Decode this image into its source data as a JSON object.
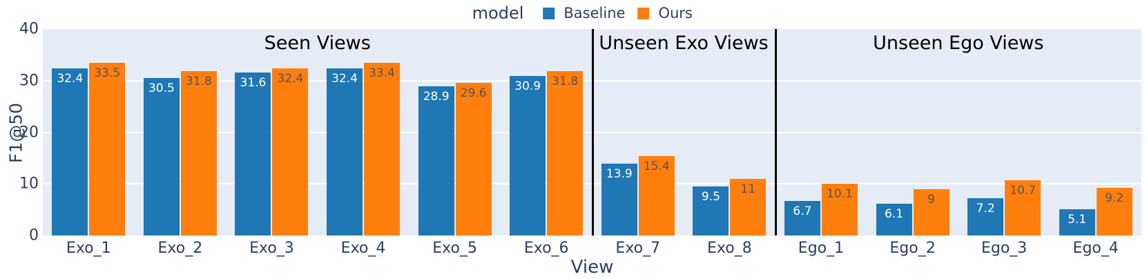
{
  "chart_data": {
    "type": "bar",
    "title": "",
    "xlabel": "View",
    "ylabel": "F1@50",
    "ylim": [
      0,
      40
    ],
    "yticks": [
      0,
      10,
      20,
      30,
      40
    ],
    "grid": true,
    "legend": {
      "title": "model",
      "position": "top-center"
    },
    "categories": [
      "Exo_1",
      "Exo_2",
      "Exo_3",
      "Exo_4",
      "Exo_5",
      "Exo_6",
      "Exo_7",
      "Exo_8",
      "Ego_1",
      "Ego_2",
      "Ego_3",
      "Ego_4"
    ],
    "series": [
      {
        "name": "Baseline",
        "color": "#1f77b4",
        "label_color": "#ffffff",
        "values": [
          32.4,
          30.5,
          31.6,
          32.4,
          28.9,
          30.9,
          13.9,
          9.5,
          6.7,
          6.1,
          7.2,
          5.1
        ]
      },
      {
        "name": "Ours",
        "color": "#ff7f0e",
        "label_color": "#545454",
        "values": [
          33.5,
          31.8,
          32.4,
          33.4,
          29.6,
          31.8,
          15.4,
          11,
          10.1,
          9,
          10.7,
          9.2
        ]
      }
    ],
    "sections": [
      {
        "label": "Seen Views",
        "start": 0,
        "end": 6
      },
      {
        "label": "Unseen Exo Views",
        "start": 6,
        "end": 8
      },
      {
        "label": "Unseen Ego Views",
        "start": 8,
        "end": 12
      }
    ],
    "colors": {
      "plot_bg": "#e5ecf6",
      "gridline": "#ffffff",
      "axis_text": "#2a3f5f",
      "section_text": "#000000",
      "divider": "#000000",
      "page_bg": "#ffffff"
    }
  }
}
